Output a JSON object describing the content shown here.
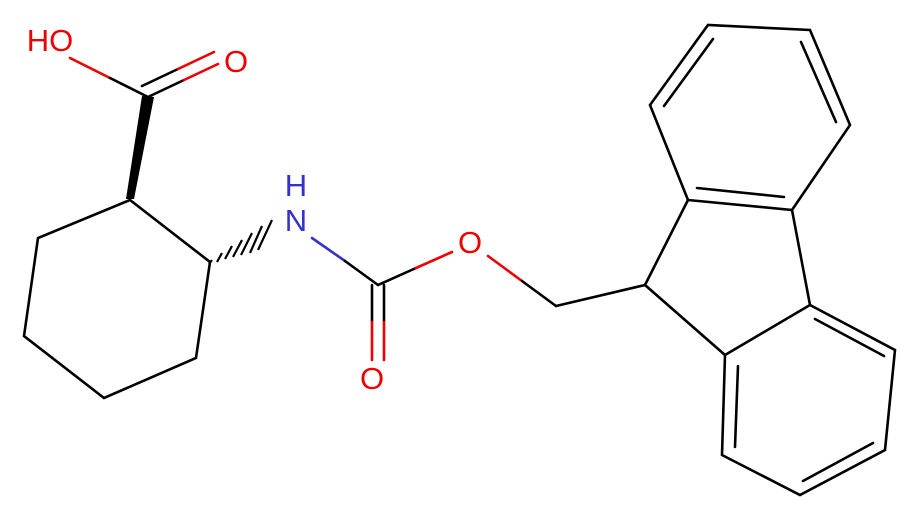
{
  "atoms": [
    {
      "label": "HO"
    },
    {
      "label": "O"
    },
    {
      "label": "H"
    },
    {
      "label": "N"
    },
    {
      "label": "O"
    },
    {
      "label": "O"
    }
  ]
}
